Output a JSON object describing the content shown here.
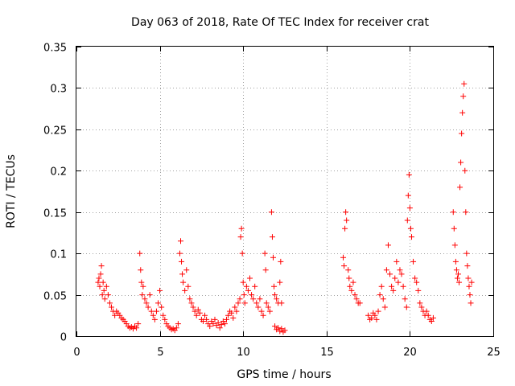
{
  "chart_data": {
    "type": "scatter",
    "title": "Day 063 of 2018, Rate Of TEC Index for receiver crat",
    "xlabel": "GPS time / hours",
    "ylabel": "ROTI / TECUs",
    "xlim": [
      0,
      25
    ],
    "ylim": [
      0,
      0.35
    ],
    "xticks": [
      "0",
      "5",
      "10",
      "15",
      "20",
      "25"
    ],
    "yticks": [
      "0",
      "0.05",
      "0.1",
      "0.15",
      "0.2",
      "0.25",
      "0.3",
      "0.35"
    ],
    "grid": true,
    "marker": "+",
    "color": "#ff0000",
    "series": [
      {
        "name": "ROTI",
        "points": [
          [
            1.3,
            0.065
          ],
          [
            1.35,
            0.07
          ],
          [
            1.4,
            0.06
          ],
          [
            1.45,
            0.075
          ],
          [
            1.5,
            0.085
          ],
          [
            1.55,
            0.05
          ],
          [
            1.6,
            0.065
          ],
          [
            1.65,
            0.055
          ],
          [
            1.7,
            0.045
          ],
          [
            1.8,
            0.06
          ],
          [
            1.9,
            0.05
          ],
          [
            2.0,
            0.04
          ],
          [
            2.1,
            0.035
          ],
          [
            2.2,
            0.03
          ],
          [
            2.3,
            0.025
          ],
          [
            2.4,
            0.03
          ],
          [
            2.5,
            0.028
          ],
          [
            2.6,
            0.025
          ],
          [
            2.7,
            0.022
          ],
          [
            2.8,
            0.02
          ],
          [
            2.9,
            0.018
          ],
          [
            3.0,
            0.015
          ],
          [
            3.1,
            0.012
          ],
          [
            3.2,
            0.01
          ],
          [
            3.3,
            0.011
          ],
          [
            3.4,
            0.009
          ],
          [
            3.5,
            0.012
          ],
          [
            3.6,
            0.01
          ],
          [
            3.7,
            0.015
          ],
          [
            3.8,
            0.1
          ],
          [
            3.85,
            0.08
          ],
          [
            3.9,
            0.065
          ],
          [
            3.95,
            0.05
          ],
          [
            4.0,
            0.06
          ],
          [
            4.1,
            0.045
          ],
          [
            4.2,
            0.04
          ],
          [
            4.3,
            0.035
          ],
          [
            4.4,
            0.05
          ],
          [
            4.5,
            0.03
          ],
          [
            4.6,
            0.025
          ],
          [
            4.7,
            0.02
          ],
          [
            4.8,
            0.03
          ],
          [
            4.9,
            0.04
          ],
          [
            5.0,
            0.055
          ],
          [
            5.1,
            0.035
          ],
          [
            5.2,
            0.025
          ],
          [
            5.3,
            0.02
          ],
          [
            5.4,
            0.015
          ],
          [
            5.5,
            0.012
          ],
          [
            5.6,
            0.01
          ],
          [
            5.7,
            0.008
          ],
          [
            5.8,
            0.009
          ],
          [
            5.9,
            0.007
          ],
          [
            6.0,
            0.01
          ],
          [
            6.1,
            0.015
          ],
          [
            6.2,
            0.1
          ],
          [
            6.25,
            0.115
          ],
          [
            6.3,
            0.09
          ],
          [
            6.35,
            0.075
          ],
          [
            6.4,
            0.065
          ],
          [
            6.5,
            0.055
          ],
          [
            6.6,
            0.08
          ],
          [
            6.7,
            0.06
          ],
          [
            6.8,
            0.045
          ],
          [
            6.9,
            0.04
          ],
          [
            7.0,
            0.035
          ],
          [
            7.1,
            0.03
          ],
          [
            7.2,
            0.025
          ],
          [
            7.3,
            0.032
          ],
          [
            7.4,
            0.028
          ],
          [
            7.5,
            0.02
          ],
          [
            7.6,
            0.018
          ],
          [
            7.7,
            0.025
          ],
          [
            7.8,
            0.02
          ],
          [
            7.9,
            0.015
          ],
          [
            8.0,
            0.012
          ],
          [
            8.1,
            0.018
          ],
          [
            8.2,
            0.015
          ],
          [
            8.3,
            0.02
          ],
          [
            8.4,
            0.013
          ],
          [
            8.5,
            0.016
          ],
          [
            8.6,
            0.01
          ],
          [
            8.7,
            0.014
          ],
          [
            8.8,
            0.018
          ],
          [
            8.9,
            0.015
          ],
          [
            9.0,
            0.02
          ],
          [
            9.1,
            0.025
          ],
          [
            9.2,
            0.03
          ],
          [
            9.3,
            0.028
          ],
          [
            9.4,
            0.022
          ],
          [
            9.5,
            0.035
          ],
          [
            9.6,
            0.03
          ],
          [
            9.7,
            0.04
          ],
          [
            9.8,
            0.045
          ],
          [
            9.85,
            0.12
          ],
          [
            9.9,
            0.13
          ],
          [
            9.95,
            0.1
          ],
          [
            10.0,
            0.065
          ],
          [
            10.05,
            0.05
          ],
          [
            10.1,
            0.04
          ],
          [
            10.2,
            0.06
          ],
          [
            10.3,
            0.055
          ],
          [
            10.4,
            0.07
          ],
          [
            10.5,
            0.05
          ],
          [
            10.6,
            0.045
          ],
          [
            10.7,
            0.06
          ],
          [
            10.8,
            0.04
          ],
          [
            10.9,
            0.035
          ],
          [
            11.0,
            0.045
          ],
          [
            11.1,
            0.03
          ],
          [
            11.2,
            0.025
          ],
          [
            11.3,
            0.1
          ],
          [
            11.35,
            0.08
          ],
          [
            11.4,
            0.04
          ],
          [
            11.5,
            0.035
          ],
          [
            11.6,
            0.03
          ],
          [
            11.7,
            0.15
          ],
          [
            11.75,
            0.12
          ],
          [
            11.8,
            0.095
          ],
          [
            11.85,
            0.06
          ],
          [
            11.9,
            0.05
          ],
          [
            12.0,
            0.045
          ],
          [
            12.1,
            0.04
          ],
          [
            12.2,
            0.065
          ],
          [
            12.25,
            0.09
          ],
          [
            12.3,
            0.04
          ],
          [
            11.9,
            0.012
          ],
          [
            12.0,
            0.008
          ],
          [
            12.1,
            0.01
          ],
          [
            12.2,
            0.006
          ],
          [
            12.3,
            0.009
          ],
          [
            12.4,
            0.005
          ],
          [
            12.5,
            0.007
          ],
          [
            16.0,
            0.095
          ],
          [
            16.05,
            0.085
          ],
          [
            16.1,
            0.13
          ],
          [
            16.15,
            0.15
          ],
          [
            16.2,
            0.14
          ],
          [
            16.3,
            0.08
          ],
          [
            16.35,
            0.07
          ],
          [
            16.4,
            0.06
          ],
          [
            16.5,
            0.055
          ],
          [
            16.6,
            0.065
          ],
          [
            16.7,
            0.05
          ],
          [
            16.8,
            0.045
          ],
          [
            16.9,
            0.04
          ],
          [
            17.0,
            0.04
          ],
          [
            17.5,
            0.025
          ],
          [
            17.6,
            0.02
          ],
          [
            17.7,
            0.022
          ],
          [
            17.8,
            0.028
          ],
          [
            17.9,
            0.025
          ],
          [
            18.0,
            0.02
          ],
          [
            18.1,
            0.03
          ],
          [
            18.2,
            0.05
          ],
          [
            18.3,
            0.06
          ],
          [
            18.4,
            0.045
          ],
          [
            18.5,
            0.035
          ],
          [
            18.6,
            0.08
          ],
          [
            18.7,
            0.11
          ],
          [
            18.8,
            0.075
          ],
          [
            18.9,
            0.06
          ],
          [
            19.0,
            0.055
          ],
          [
            19.1,
            0.07
          ],
          [
            19.2,
            0.09
          ],
          [
            19.3,
            0.065
          ],
          [
            19.4,
            0.08
          ],
          [
            19.5,
            0.075
          ],
          [
            19.6,
            0.06
          ],
          [
            19.7,
            0.045
          ],
          [
            19.8,
            0.035
          ],
          [
            19.85,
            0.14
          ],
          [
            19.9,
            0.17
          ],
          [
            19.95,
            0.195
          ],
          [
            20.0,
            0.155
          ],
          [
            20.05,
            0.13
          ],
          [
            20.1,
            0.12
          ],
          [
            20.2,
            0.09
          ],
          [
            20.3,
            0.07
          ],
          [
            20.4,
            0.065
          ],
          [
            20.5,
            0.055
          ],
          [
            20.6,
            0.04
          ],
          [
            20.7,
            0.035
          ],
          [
            20.8,
            0.03
          ],
          [
            20.9,
            0.025
          ],
          [
            21.0,
            0.03
          ],
          [
            21.1,
            0.025
          ],
          [
            21.2,
            0.02
          ],
          [
            21.3,
            0.018
          ],
          [
            21.4,
            0.022
          ],
          [
            22.6,
            0.15
          ],
          [
            22.65,
            0.13
          ],
          [
            22.7,
            0.11
          ],
          [
            22.75,
            0.09
          ],
          [
            22.8,
            0.08
          ],
          [
            22.85,
            0.07
          ],
          [
            22.9,
            0.075
          ],
          [
            22.95,
            0.065
          ],
          [
            23.0,
            0.18
          ],
          [
            23.05,
            0.21
          ],
          [
            23.1,
            0.245
          ],
          [
            23.15,
            0.27
          ],
          [
            23.2,
            0.29
          ],
          [
            23.25,
            0.305
          ],
          [
            23.3,
            0.2
          ],
          [
            23.35,
            0.15
          ],
          [
            23.4,
            0.1
          ],
          [
            23.45,
            0.085
          ],
          [
            23.5,
            0.07
          ],
          [
            23.55,
            0.06
          ],
          [
            23.6,
            0.05
          ],
          [
            23.65,
            0.04
          ],
          [
            23.7,
            0.065
          ]
        ]
      }
    ]
  }
}
